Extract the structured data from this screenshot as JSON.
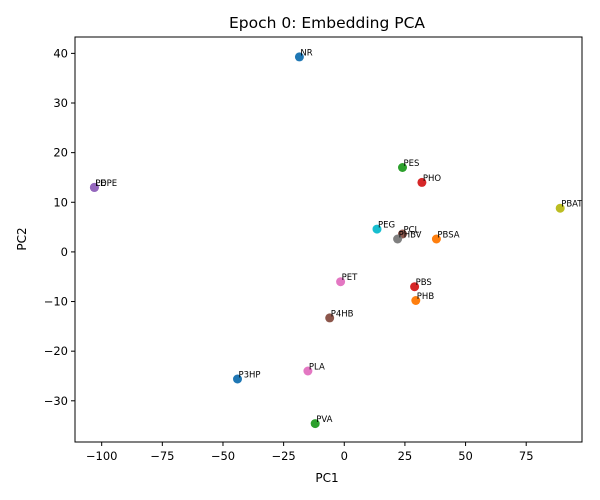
{
  "chart_data": {
    "type": "scatter",
    "title": "Epoch 0: Embedding PCA",
    "xlabel": "PC1",
    "ylabel": "PC2",
    "xlim": [
      -111,
      98
    ],
    "ylim": [
      -38.3,
      43.3
    ],
    "xticks": [
      -100,
      -75,
      -50,
      -25,
      0,
      25,
      50,
      75
    ],
    "yticks": [
      -30,
      -20,
      -10,
      0,
      10,
      20,
      30,
      40
    ],
    "grid": false,
    "legend": "none",
    "points": [
      {
        "label": "NR",
        "x": -18.5,
        "y": 39.3,
        "color": "#1f77b4"
      },
      {
        "label": "PBSA",
        "x": 38,
        "y": 2.6,
        "color": "#ff7f0e"
      },
      {
        "label": "PES",
        "x": 24,
        "y": 17,
        "color": "#2ca02c"
      },
      {
        "label": "PHO",
        "x": 32,
        "y": 14,
        "color": "#d62728"
      },
      {
        "label": "PCL",
        "x": 24,
        "y": 3.6,
        "color": "#8c564b"
      },
      {
        "label": "PBAT",
        "x": 89,
        "y": 8.8,
        "color": "#bcbd22"
      },
      {
        "label": "PEG",
        "x": 13.5,
        "y": 4.6,
        "color": "#17becf"
      },
      {
        "label": "PHBV",
        "x": 22,
        "y": 2.6,
        "color": "#7f7f7f"
      },
      {
        "label": "PE",
        "x": -103,
        "y": 13,
        "color": "#9467bd"
      },
      {
        "label": "LDPE",
        "x": -103,
        "y": 13,
        "color": "#9467bd"
      },
      {
        "label": "PET",
        "x": -1.5,
        "y": -6,
        "color": "#e377c2"
      },
      {
        "label": "PBS",
        "x": 29,
        "y": -7,
        "color": "#d62728"
      },
      {
        "label": "PHB",
        "x": 29.5,
        "y": -9.8,
        "color": "#ff7f0e"
      },
      {
        "label": "P4HB",
        "x": -6,
        "y": -13.3,
        "color": "#8c564b"
      },
      {
        "label": "PLA",
        "x": -15,
        "y": -24,
        "color": "#e377c2"
      },
      {
        "label": "P3HP",
        "x": -44,
        "y": -25.6,
        "color": "#1f77b4"
      },
      {
        "label": "PVA",
        "x": -12,
        "y": -34.6,
        "color": "#2ca02c"
      }
    ]
  }
}
